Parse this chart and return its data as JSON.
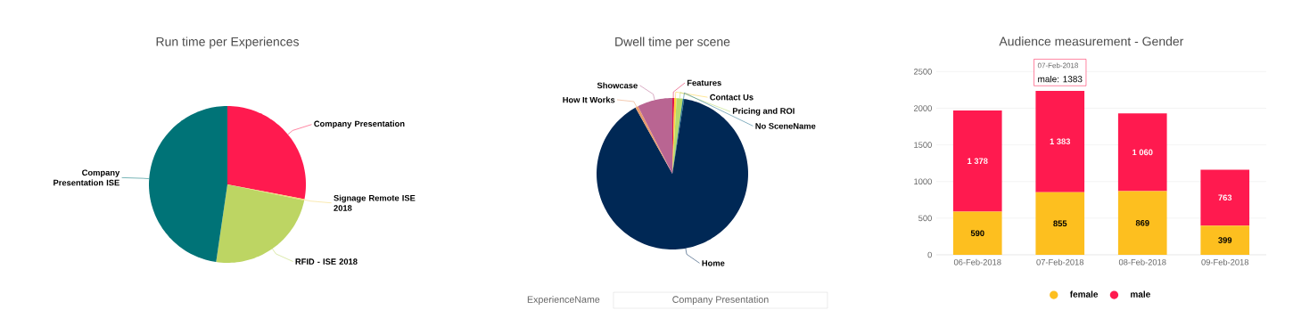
{
  "chart_data": [
    {
      "type": "pie",
      "title": "Run time per Experiences",
      "categories": [
        "Company Presentation",
        "Signage Remote ISE 2018",
        "RFID - ISE 2018",
        "Company Presentation ISE"
      ],
      "values": [
        28,
        0.3,
        24,
        47.7
      ],
      "colors": [
        "#ff1a4f",
        "#f5d76e",
        "#bdd563",
        "#007377"
      ]
    },
    {
      "type": "pie",
      "title": "Dwell time per scene",
      "categories": [
        "Features",
        "Contact Us",
        "Pricing and ROI",
        "No SceneName",
        "Home",
        "How It Works",
        "Showcase"
      ],
      "values": [
        0.4,
        0.5,
        1.3,
        0.3,
        89.4,
        0.6,
        7.5
      ],
      "colors": [
        "#e0144b",
        "#ffd23f",
        "#b5d96a",
        "#1e6e8c",
        "#002855",
        "#e89b6b",
        "#b96592"
      ],
      "annotations": [
        "ExperienceName",
        "Company Presentation"
      ]
    },
    {
      "type": "bar",
      "title": "Audience measurement - Gender",
      "stacked": true,
      "categories": [
        "06-Feb-2018",
        "07-Feb-2018",
        "08-Feb-2018",
        "09-Feb-2018"
      ],
      "series": [
        {
          "name": "female",
          "color": "#fdbf1f",
          "values": [
            590,
            855,
            869,
            399
          ],
          "value_labels": [
            "590",
            "855",
            "869",
            "399"
          ]
        },
        {
          "name": "male",
          "color": "#ff1a4f",
          "values": [
            1378,
            1383,
            1060,
            763
          ],
          "value_labels": [
            "1 378",
            "1 383",
            "1 060",
            "763"
          ]
        }
      ],
      "ylim": [
        0,
        2650
      ],
      "yticks": [
        0,
        500,
        1000,
        1500,
        2000,
        2500
      ],
      "grid": "y",
      "legend": "bottom",
      "annotations": [
        "07-Feb-2018",
        "male: 1383"
      ]
    }
  ]
}
